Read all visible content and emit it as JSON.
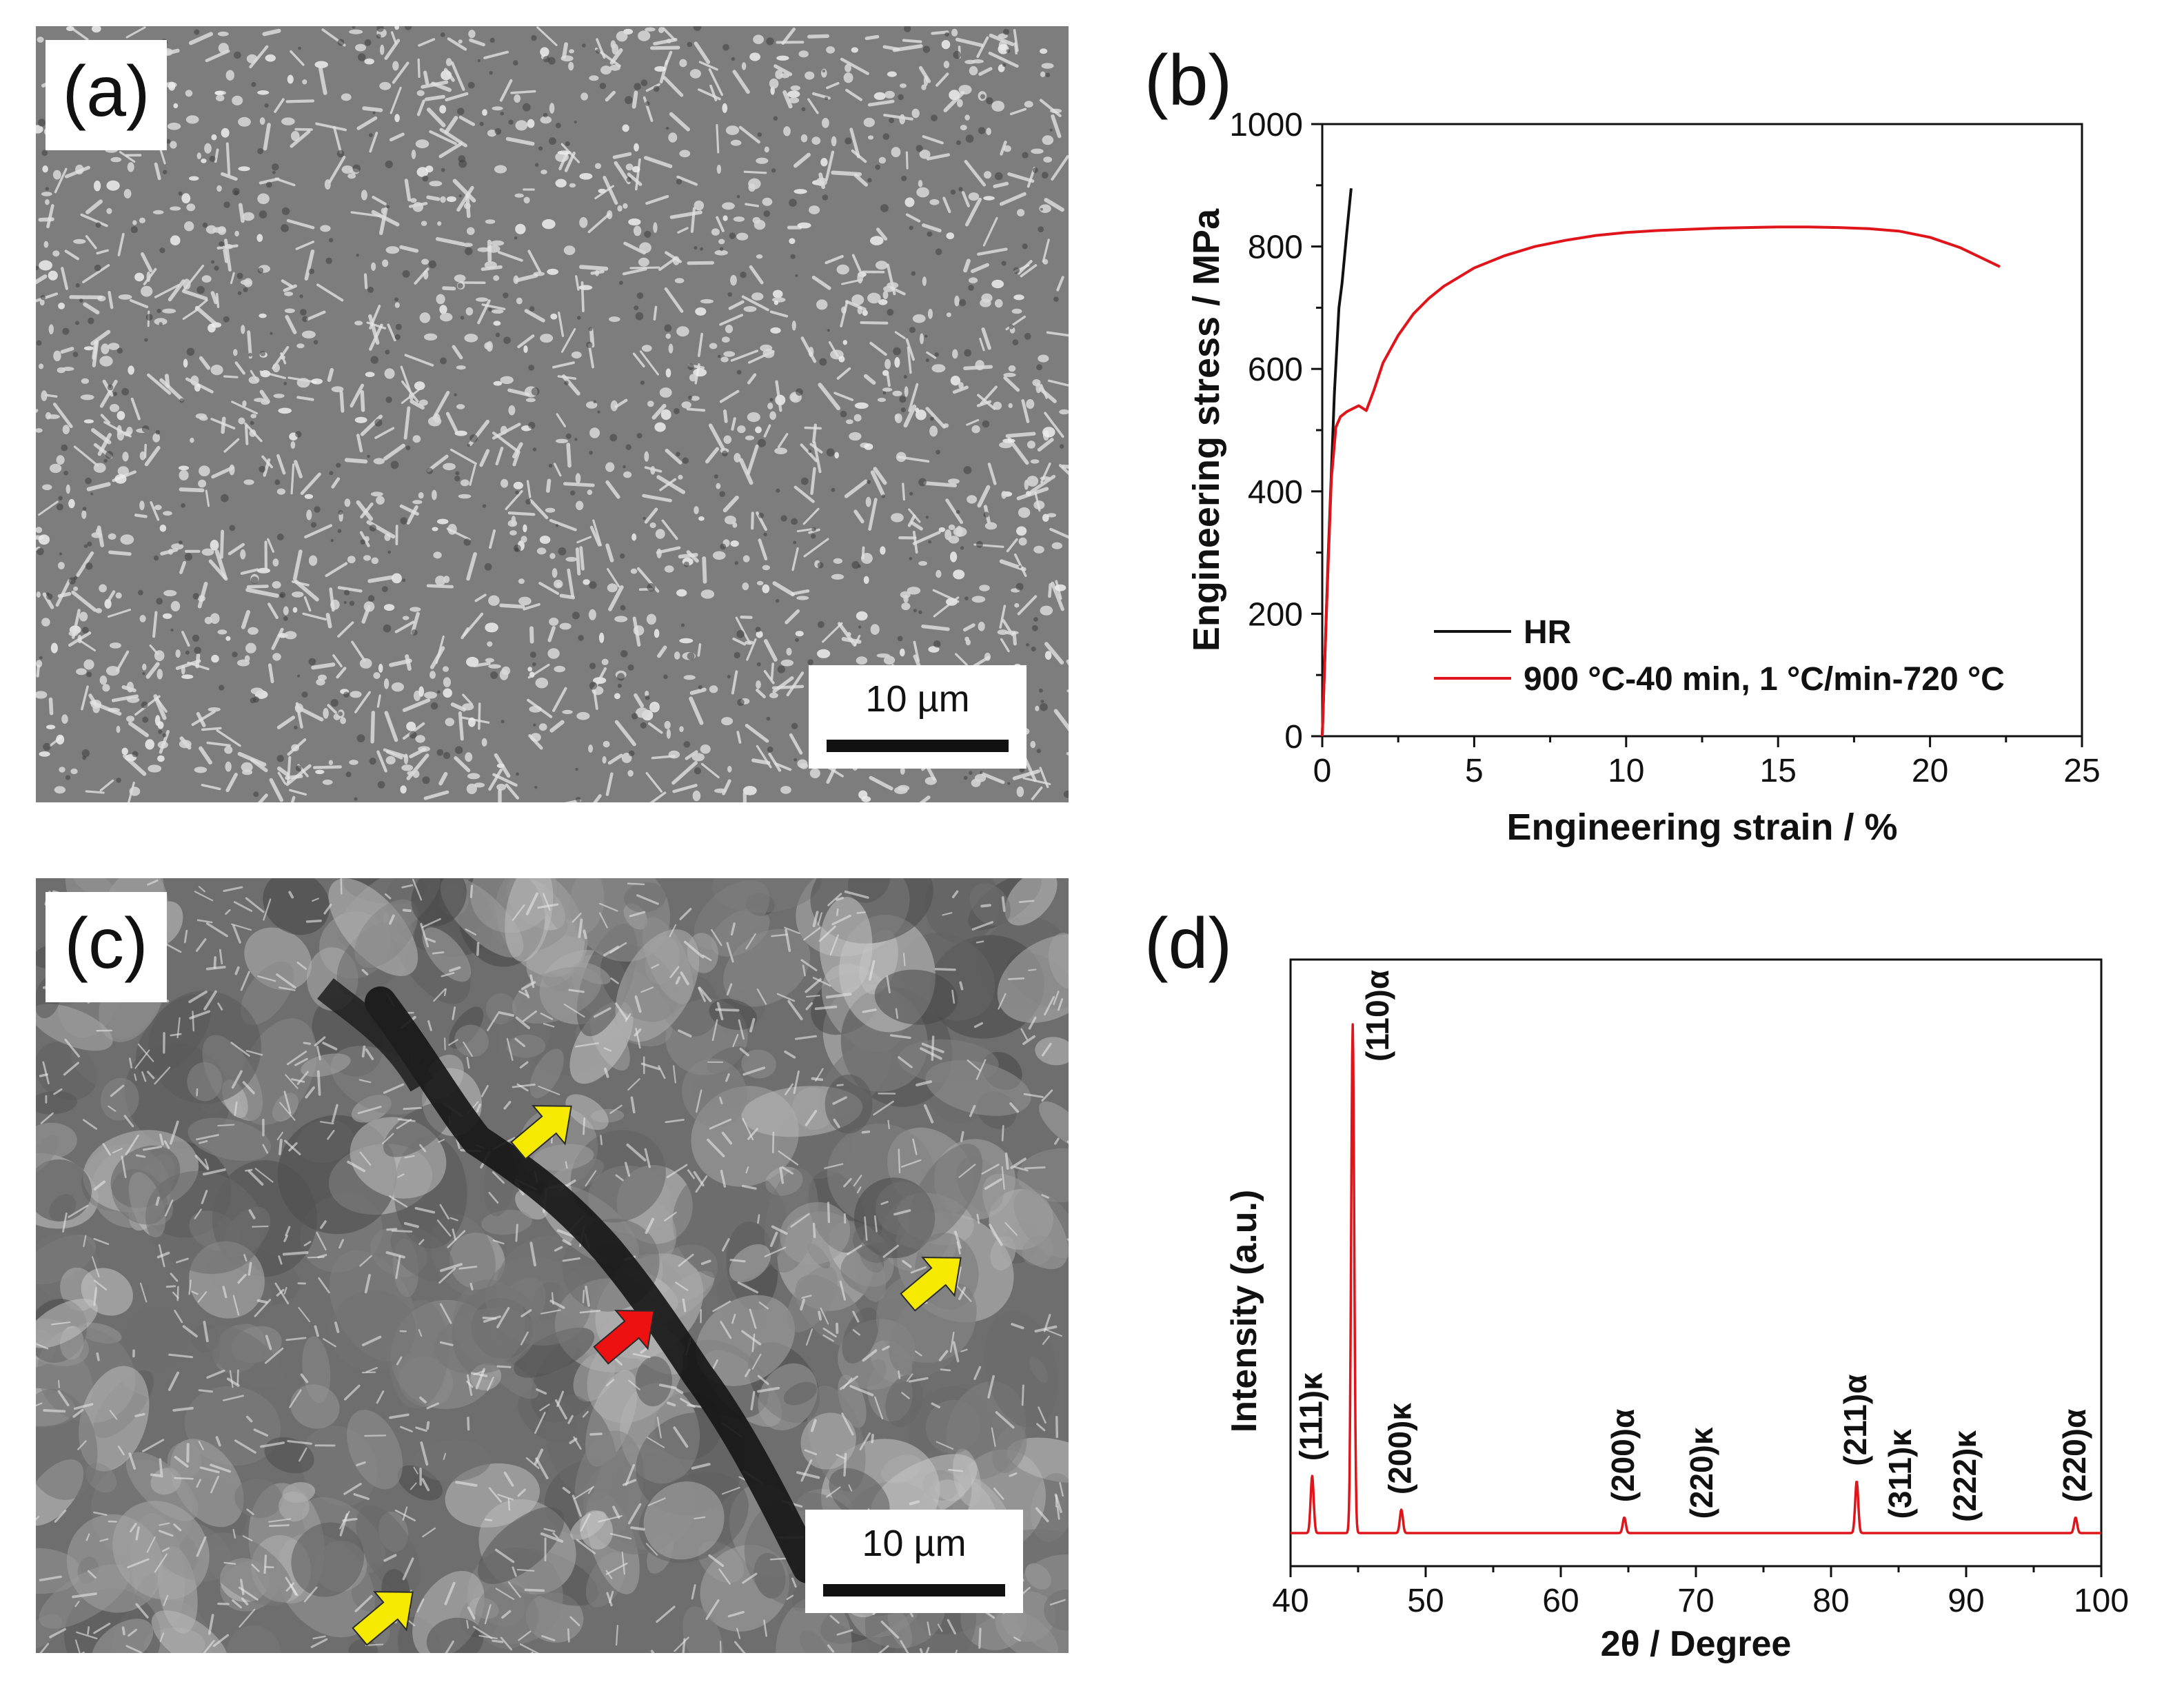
{
  "panels": {
    "a": {
      "label": "(a)",
      "scale": "10 µm"
    },
    "b": {
      "label": "(b)"
    },
    "c": {
      "label": "(c)",
      "scale": "10 µm"
    },
    "d": {
      "label": "(d)"
    }
  },
  "colors": {
    "hr": "#111111",
    "heat_treated": "#e0151b",
    "xrd": "#e0151b",
    "arrow_yellow": "#f5ea00",
    "arrow_red": "#ee1111"
  },
  "chart_data": [
    {
      "type": "line",
      "panel": "(b)",
      "xlabel": "Engineering strain / %",
      "ylabel": "Engineering stress / MPa",
      "xlim": [
        0,
        25
      ],
      "ylim": [
        0,
        1000
      ],
      "xticks": [
        0,
        5,
        10,
        15,
        20,
        25
      ],
      "yticks": [
        0,
        200,
        400,
        600,
        800,
        1000
      ],
      "legend_position": "bottom-left",
      "series": [
        {
          "name": "HR",
          "color": "#111111",
          "x": [
            0,
            0.2,
            0.4,
            0.55,
            0.65,
            0.8,
            0.95
          ],
          "y": [
            0,
            300,
            560,
            700,
            740,
            820,
            895
          ]
        },
        {
          "name": "900 °C-40 min, 1 °C/min-720 °C",
          "color": "#e0151b",
          "x": [
            0,
            0.15,
            0.3,
            0.45,
            0.6,
            0.8,
            1.0,
            1.2,
            1.45,
            1.7,
            2.0,
            2.5,
            3.0,
            3.5,
            4.0,
            5.0,
            6.0,
            7.0,
            8.0,
            9.0,
            10.0,
            11.0,
            12.0,
            13.0,
            14.0,
            15.0,
            16.0,
            17.0,
            18.0,
            19.0,
            20.0,
            21.0,
            22.3
          ],
          "y": [
            0,
            220,
            420,
            505,
            522,
            530,
            535,
            540,
            532,
            565,
            610,
            655,
            690,
            715,
            735,
            765,
            785,
            800,
            810,
            818,
            823,
            826,
            828,
            830,
            831,
            832,
            832,
            831,
            829,
            825,
            815,
            798,
            767
          ]
        }
      ]
    },
    {
      "type": "line",
      "panel": "(d)",
      "xlabel": "2θ / Degree",
      "ylabel": "Intensity (a.u.)",
      "xlim": [
        40,
        100
      ],
      "xticks": [
        40,
        50,
        60,
        70,
        80,
        90,
        100
      ],
      "baseline": 0.02,
      "series": [
        {
          "name": "",
          "color": "#e0151b",
          "peaks": [
            {
              "pos": 41.6,
              "height": 0.13,
              "label": "(111)κ"
            },
            {
              "pos": 44.6,
              "height": 1.0,
              "label": "(110)α"
            },
            {
              "pos": 48.2,
              "height": 0.065,
              "label": "(200)κ"
            },
            {
              "pos": 64.7,
              "height": 0.05,
              "label": "(200)α"
            },
            {
              "pos": 70.5,
              "height": 0.018,
              "label": "(220)κ"
            },
            {
              "pos": 81.9,
              "height": 0.12,
              "label": "(211)α"
            },
            {
              "pos": 85.2,
              "height": 0.018,
              "label": "(311)κ"
            },
            {
              "pos": 90.0,
              "height": 0.012,
              "label": "(222)κ"
            },
            {
              "pos": 98.1,
              "height": 0.05,
              "label": "(220)α"
            }
          ]
        }
      ]
    }
  ]
}
